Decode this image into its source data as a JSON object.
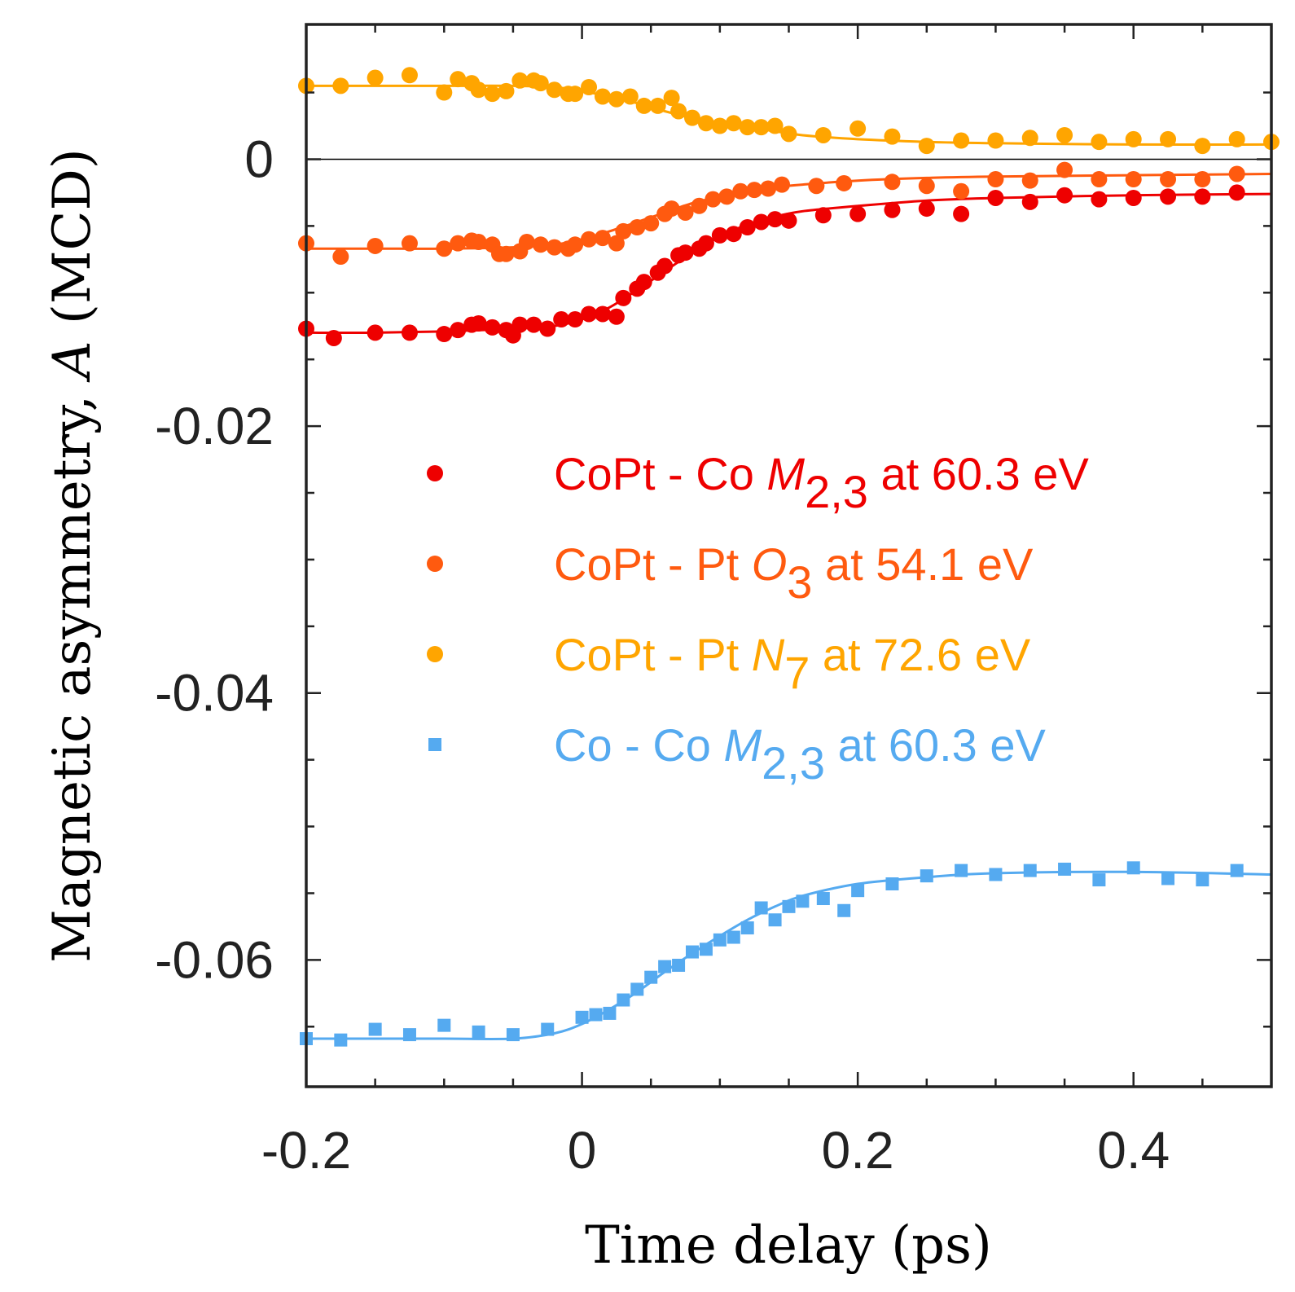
{
  "chart_data": {
    "type": "scatter",
    "xlabel": "Time delay (ps)",
    "ylabel_prefix": "Magnetic asymmetry, ",
    "ylabel_var": "A",
    "ylabel_suffix": " (MCD)",
    "xlim": [
      -0.2,
      0.5
    ],
    "ylim": [
      -0.0695,
      0.0101
    ],
    "x_ticks": [
      -0.2,
      0,
      0.2,
      0.4
    ],
    "x_tick_labels": [
      "-0.2",
      "0",
      "0.2",
      "0.4"
    ],
    "y_ticks": [
      0,
      -0.02,
      -0.04,
      -0.06
    ],
    "y_tick_labels": [
      "0",
      "-0.02",
      "-0.04",
      "-0.06"
    ],
    "zero_line": true,
    "grid": false,
    "legend_position": "center-right",
    "series": [
      {
        "name": "CoPt - Co M2,3 at 60.3 eV",
        "label_main": "CoPt - Co ",
        "label_italic": "M",
        "label_sub": "2,3",
        "label_rest": " at 60.3 eV",
        "color": "#ee0000",
        "marker": "circle",
        "points": [
          [
            -0.2,
            -0.0127
          ],
          [
            -0.18,
            -0.0134
          ],
          [
            -0.15,
            -0.013
          ],
          [
            -0.125,
            -0.013
          ],
          [
            -0.1,
            -0.0131
          ],
          [
            -0.09,
            -0.0128
          ],
          [
            -0.08,
            -0.0124
          ],
          [
            -0.075,
            -0.0123
          ],
          [
            -0.065,
            -0.0126
          ],
          [
            -0.055,
            -0.0128
          ],
          [
            -0.05,
            -0.0132
          ],
          [
            -0.045,
            -0.0124
          ],
          [
            -0.035,
            -0.0124
          ],
          [
            -0.025,
            -0.0127
          ],
          [
            -0.015,
            -0.012
          ],
          [
            -0.005,
            -0.012
          ],
          [
            0.005,
            -0.0116
          ],
          [
            0.015,
            -0.0116
          ],
          [
            0.025,
            -0.0118
          ],
          [
            0.03,
            -0.0104
          ],
          [
            0.04,
            -0.0097
          ],
          [
            0.045,
            -0.0092
          ],
          [
            0.055,
            -0.0085
          ],
          [
            0.06,
            -0.008
          ],
          [
            0.07,
            -0.0072
          ],
          [
            0.075,
            -0.007
          ],
          [
            0.085,
            -0.0067
          ],
          [
            0.09,
            -0.0063
          ],
          [
            0.1,
            -0.0057
          ],
          [
            0.11,
            -0.0056
          ],
          [
            0.12,
            -0.0051
          ],
          [
            0.13,
            -0.0047
          ],
          [
            0.14,
            -0.0045
          ],
          [
            0.15,
            -0.0046
          ],
          [
            0.175,
            -0.0042
          ],
          [
            0.2,
            -0.0041
          ],
          [
            0.225,
            -0.0038
          ],
          [
            0.25,
            -0.0037
          ],
          [
            0.275,
            -0.0041
          ],
          [
            0.3,
            -0.0029
          ],
          [
            0.325,
            -0.0032
          ],
          [
            0.35,
            -0.0027
          ],
          [
            0.375,
            -0.003
          ],
          [
            0.4,
            -0.0029
          ],
          [
            0.425,
            -0.0028
          ],
          [
            0.45,
            -0.0028
          ],
          [
            0.475,
            -0.0025
          ]
        ],
        "fit": [
          [
            -0.2,
            -0.013
          ],
          [
            -0.15,
            -0.013
          ],
          [
            -0.1,
            -0.0129
          ],
          [
            -0.05,
            -0.0127
          ],
          [
            -0.02,
            -0.0125
          ],
          [
            0,
            -0.012
          ],
          [
            0.02,
            -0.0111
          ],
          [
            0.04,
            -0.0098
          ],
          [
            0.06,
            -0.0084
          ],
          [
            0.08,
            -0.007
          ],
          [
            0.1,
            -0.0058
          ],
          [
            0.12,
            -0.0049
          ],
          [
            0.14,
            -0.0043
          ],
          [
            0.16,
            -0.0039
          ],
          [
            0.2,
            -0.0035
          ],
          [
            0.25,
            -0.0031
          ],
          [
            0.3,
            -0.0029
          ],
          [
            0.4,
            -0.0027
          ],
          [
            0.5,
            -0.0026
          ]
        ]
      },
      {
        "name": "CoPt - Pt O3 at 54.1 eV",
        "label_main": "CoPt - Pt ",
        "label_italic": "O",
        "label_sub": "3",
        "label_rest": " at 54.1 eV",
        "color": "#ff5a0f",
        "marker": "circle",
        "points": [
          [
            -0.2,
            -0.0063
          ],
          [
            -0.175,
            -0.0073
          ],
          [
            -0.15,
            -0.0065
          ],
          [
            -0.125,
            -0.0063
          ],
          [
            -0.1,
            -0.0067
          ],
          [
            -0.09,
            -0.0063
          ],
          [
            -0.08,
            -0.0061
          ],
          [
            -0.075,
            -0.0062
          ],
          [
            -0.065,
            -0.0064
          ],
          [
            -0.06,
            -0.0071
          ],
          [
            -0.055,
            -0.0071
          ],
          [
            -0.045,
            -0.0069
          ],
          [
            -0.04,
            -0.0062
          ],
          [
            -0.03,
            -0.0064
          ],
          [
            -0.02,
            -0.0066
          ],
          [
            -0.01,
            -0.0067
          ],
          [
            -0.005,
            -0.0064
          ],
          [
            0.005,
            -0.006
          ],
          [
            0.015,
            -0.0059
          ],
          [
            0.025,
            -0.0063
          ],
          [
            0.03,
            -0.0054
          ],
          [
            0.04,
            -0.0051
          ],
          [
            0.05,
            -0.0048
          ],
          [
            0.06,
            -0.0041
          ],
          [
            0.065,
            -0.0037
          ],
          [
            0.075,
            -0.004
          ],
          [
            0.085,
            -0.0035
          ],
          [
            0.095,
            -0.003
          ],
          [
            0.105,
            -0.0028
          ],
          [
            0.115,
            -0.0024
          ],
          [
            0.125,
            -0.0023
          ],
          [
            0.135,
            -0.0022
          ],
          [
            0.145,
            -0.0019
          ],
          [
            0.17,
            -0.002
          ],
          [
            0.19,
            -0.0018
          ],
          [
            0.225,
            -0.0017
          ],
          [
            0.25,
            -0.002
          ],
          [
            0.275,
            -0.0024
          ],
          [
            0.3,
            -0.0015
          ],
          [
            0.325,
            -0.0016
          ],
          [
            0.35,
            -0.0008
          ],
          [
            0.375,
            -0.0015
          ],
          [
            0.4,
            -0.0015
          ],
          [
            0.425,
            -0.0015
          ],
          [
            0.45,
            -0.0015
          ],
          [
            0.475,
            -0.0011
          ]
        ],
        "fit": [
          [
            -0.2,
            -0.0067
          ],
          [
            -0.15,
            -0.0067
          ],
          [
            -0.1,
            -0.0067
          ],
          [
            -0.05,
            -0.0066
          ],
          [
            -0.02,
            -0.0064
          ],
          [
            0,
            -0.006
          ],
          [
            0.02,
            -0.0054
          ],
          [
            0.04,
            -0.0047
          ],
          [
            0.06,
            -0.004
          ],
          [
            0.08,
            -0.0033
          ],
          [
            0.1,
            -0.0028
          ],
          [
            0.12,
            -0.0024
          ],
          [
            0.14,
            -0.0021
          ],
          [
            0.16,
            -0.0019
          ],
          [
            0.2,
            -0.0016
          ],
          [
            0.25,
            -0.0014
          ],
          [
            0.3,
            -0.0013
          ],
          [
            0.4,
            -0.0012
          ],
          [
            0.5,
            -0.0011
          ]
        ]
      },
      {
        "name": "CoPt - Pt N7 at 72.6 eV",
        "label_main": "CoPt - Pt ",
        "label_italic": "N",
        "label_sub": "7",
        "label_rest": " at 72.6 eV",
        "color": "#ffa500",
        "marker": "circle",
        "points": [
          [
            -0.2,
            0.0055
          ],
          [
            -0.175,
            0.0055
          ],
          [
            -0.15,
            0.0061
          ],
          [
            -0.125,
            0.0063
          ],
          [
            -0.1,
            0.005
          ],
          [
            -0.09,
            0.006
          ],
          [
            -0.08,
            0.0057
          ],
          [
            -0.075,
            0.0052
          ],
          [
            -0.065,
            0.0049
          ],
          [
            -0.055,
            0.0051
          ],
          [
            -0.045,
            0.0059
          ],
          [
            -0.035,
            0.0059
          ],
          [
            -0.03,
            0.0057
          ],
          [
            -0.02,
            0.0052
          ],
          [
            -0.01,
            0.0049
          ],
          [
            -0.005,
            0.0049
          ],
          [
            0.005,
            0.0054
          ],
          [
            0.015,
            0.0047
          ],
          [
            0.025,
            0.0045
          ],
          [
            0.035,
            0.0047
          ],
          [
            0.045,
            0.004
          ],
          [
            0.055,
            0.004
          ],
          [
            0.065,
            0.0046
          ],
          [
            0.07,
            0.0036
          ],
          [
            0.08,
            0.0031
          ],
          [
            0.09,
            0.0027
          ],
          [
            0.1,
            0.0025
          ],
          [
            0.11,
            0.0027
          ],
          [
            0.12,
            0.0024
          ],
          [
            0.13,
            0.0024
          ],
          [
            0.14,
            0.0025
          ],
          [
            0.15,
            0.0019
          ],
          [
            0.175,
            0.0018
          ],
          [
            0.2,
            0.0023
          ],
          [
            0.225,
            0.0017
          ],
          [
            0.25,
            0.001
          ],
          [
            0.275,
            0.0014
          ],
          [
            0.3,
            0.0014
          ],
          [
            0.325,
            0.0016
          ],
          [
            0.35,
            0.0018
          ],
          [
            0.375,
            0.0013
          ],
          [
            0.4,
            0.0015
          ],
          [
            0.425,
            0.0015
          ],
          [
            0.45,
            0.001
          ],
          [
            0.475,
            0.0015
          ],
          [
            0.5,
            0.0013
          ]
        ],
        "fit": [
          [
            -0.2,
            0.0055
          ],
          [
            -0.15,
            0.0055
          ],
          [
            -0.1,
            0.0055
          ],
          [
            -0.05,
            0.0055
          ],
          [
            -0.02,
            0.0054
          ],
          [
            0,
            0.0051
          ],
          [
            0.02,
            0.0047
          ],
          [
            0.04,
            0.0042
          ],
          [
            0.06,
            0.0036
          ],
          [
            0.08,
            0.0031
          ],
          [
            0.1,
            0.0027
          ],
          [
            0.12,
            0.0024
          ],
          [
            0.14,
            0.0021
          ],
          [
            0.16,
            0.0018
          ],
          [
            0.2,
            0.0015
          ],
          [
            0.25,
            0.0013
          ],
          [
            0.3,
            0.0012
          ],
          [
            0.4,
            0.0011
          ],
          [
            0.5,
            0.0011
          ]
        ]
      },
      {
        "name": "Co - Co M2,3 at 60.3 eV",
        "label_main": "Co - Co ",
        "label_italic": "M",
        "label_sub": "2,3",
        "label_rest": " at 60.3 eV",
        "color": "#55aaf0",
        "marker": "square",
        "points": [
          [
            -0.2,
            -0.0659
          ],
          [
            -0.175,
            -0.066
          ],
          [
            -0.15,
            -0.0652
          ],
          [
            -0.125,
            -0.0656
          ],
          [
            -0.1,
            -0.0649
          ],
          [
            -0.075,
            -0.0654
          ],
          [
            -0.05,
            -0.0656
          ],
          [
            -0.025,
            -0.0652
          ],
          [
            0,
            -0.0643
          ],
          [
            0.01,
            -0.0641
          ],
          [
            0.02,
            -0.064
          ],
          [
            0.03,
            -0.063
          ],
          [
            0.04,
            -0.0622
          ],
          [
            0.05,
            -0.0613
          ],
          [
            0.06,
            -0.0605
          ],
          [
            0.07,
            -0.0604
          ],
          [
            0.08,
            -0.0594
          ],
          [
            0.09,
            -0.0592
          ],
          [
            0.1,
            -0.0585
          ],
          [
            0.11,
            -0.0583
          ],
          [
            0.12,
            -0.0576
          ],
          [
            0.13,
            -0.0561
          ],
          [
            0.14,
            -0.057
          ],
          [
            0.15,
            -0.056
          ],
          [
            0.16,
            -0.0556
          ],
          [
            0.175,
            -0.0554
          ],
          [
            0.19,
            -0.0563
          ],
          [
            0.2,
            -0.0548
          ],
          [
            0.225,
            -0.0543
          ],
          [
            0.25,
            -0.0537
          ],
          [
            0.275,
            -0.0533
          ],
          [
            0.3,
            -0.0536
          ],
          [
            0.325,
            -0.0533
          ],
          [
            0.35,
            -0.0532
          ],
          [
            0.375,
            -0.054
          ],
          [
            0.4,
            -0.0531
          ],
          [
            0.425,
            -0.0539
          ],
          [
            0.45,
            -0.054
          ],
          [
            0.475,
            -0.0533
          ]
        ],
        "fit": [
          [
            -0.2,
            -0.0659
          ],
          [
            -0.15,
            -0.0659
          ],
          [
            -0.1,
            -0.0659
          ],
          [
            -0.05,
            -0.0659
          ],
          [
            -0.02,
            -0.0655
          ],
          [
            0,
            -0.0648
          ],
          [
            0.02,
            -0.0637
          ],
          [
            0.04,
            -0.0624
          ],
          [
            0.06,
            -0.0609
          ],
          [
            0.08,
            -0.0595
          ],
          [
            0.1,
            -0.0582
          ],
          [
            0.12,
            -0.057
          ],
          [
            0.14,
            -0.056
          ],
          [
            0.16,
            -0.0552
          ],
          [
            0.2,
            -0.0543
          ],
          [
            0.25,
            -0.0538
          ],
          [
            0.3,
            -0.0535
          ],
          [
            0.4,
            -0.0534
          ],
          [
            0.5,
            -0.0536
          ]
        ]
      }
    ]
  }
}
